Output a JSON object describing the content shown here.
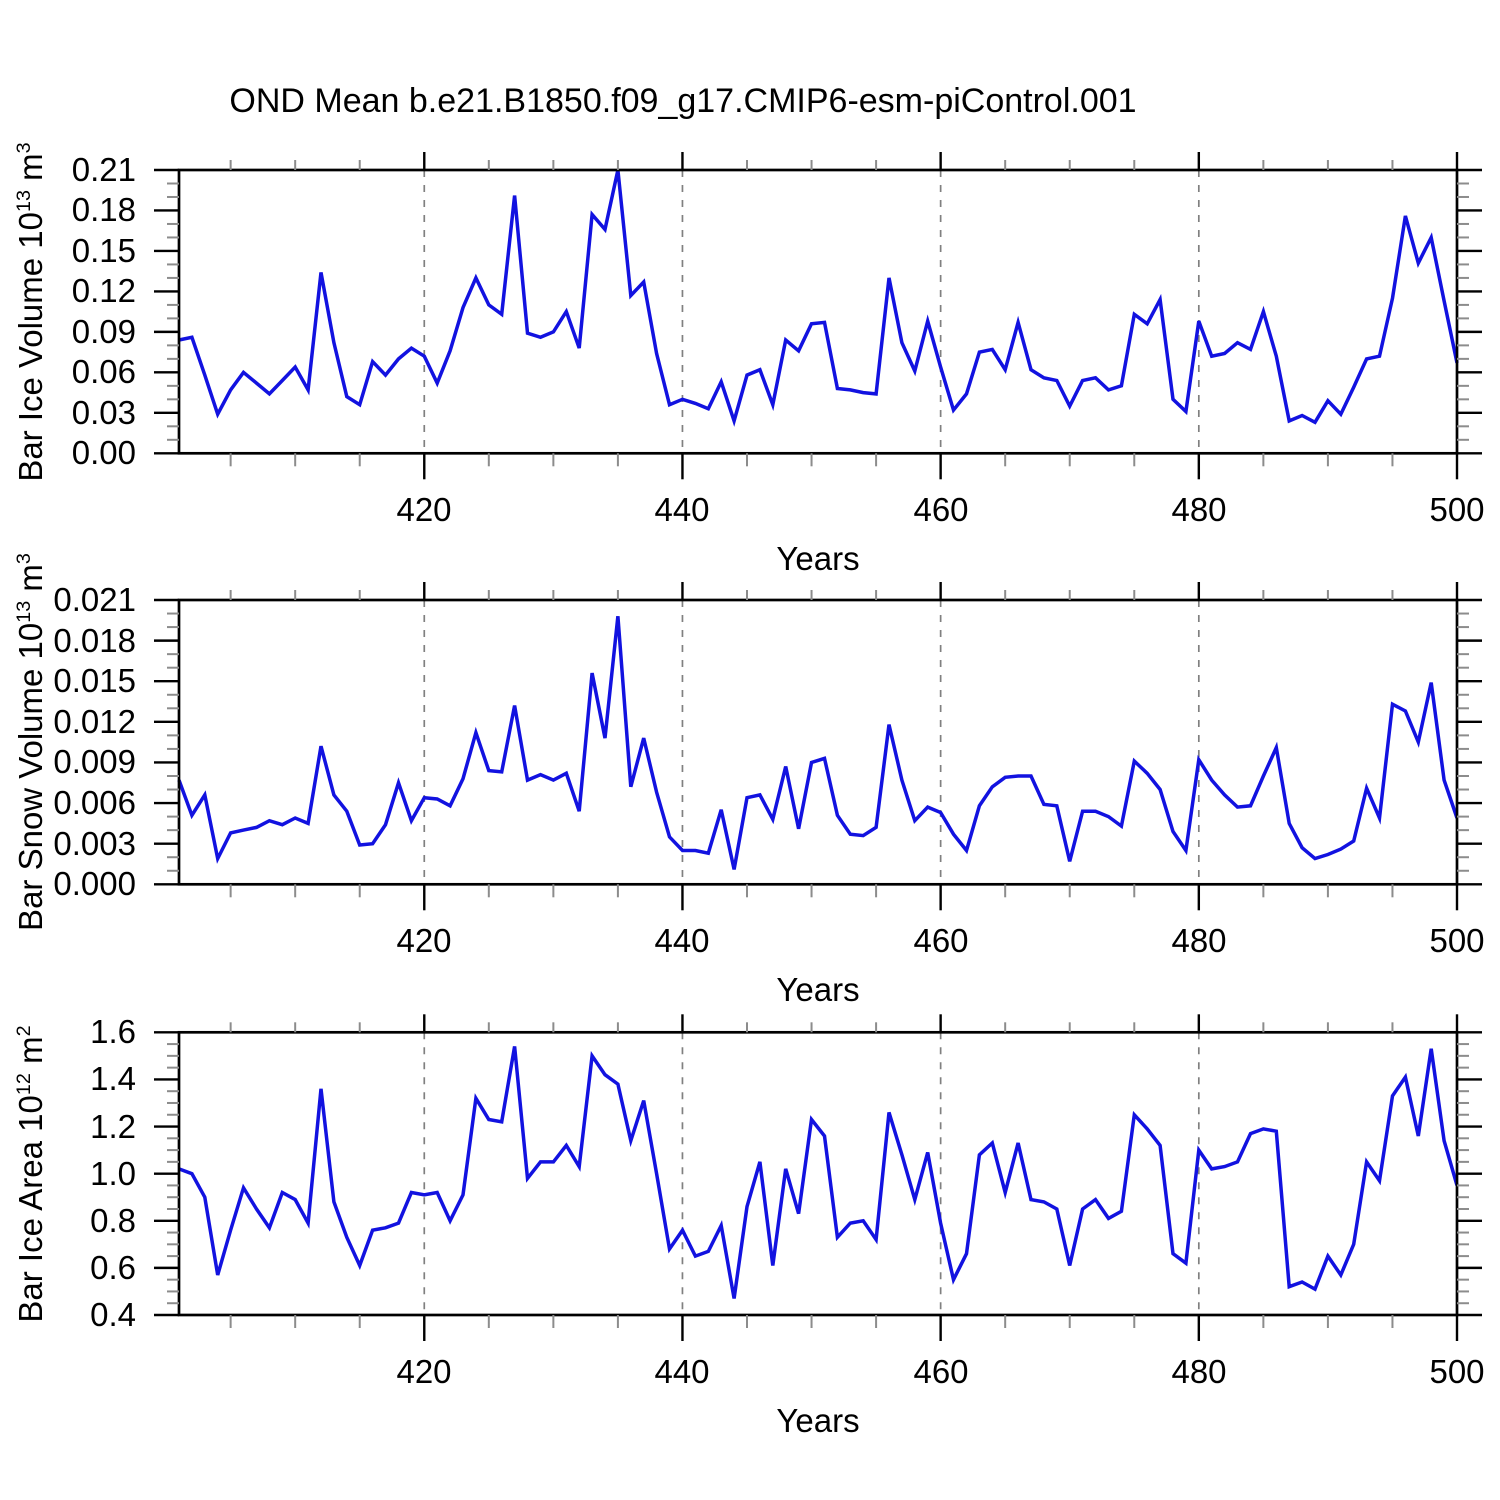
{
  "title": "OND Mean b.e21.B1850.f09_g17.CMIP6-esm-piControl.001",
  "chart_data": {
    "type": "line",
    "legend": "none",
    "grid": "vertical-dashed",
    "line_color": "#1212e0",
    "x_label": "Years",
    "x_ticks": [
      420,
      440,
      460,
      480,
      500
    ],
    "x_minor_step": 5,
    "gridline_years": [
      420,
      440,
      460,
      480
    ],
    "xlim": [
      401,
      500
    ],
    "x": [
      401,
      402,
      403,
      404,
      405,
      406,
      407,
      408,
      409,
      410,
      411,
      412,
      413,
      414,
      415,
      416,
      417,
      418,
      419,
      420,
      421,
      422,
      423,
      424,
      425,
      426,
      427,
      428,
      429,
      430,
      431,
      432,
      433,
      434,
      435,
      436,
      437,
      438,
      439,
      440,
      441,
      442,
      443,
      444,
      445,
      446,
      447,
      448,
      449,
      450,
      451,
      452,
      453,
      454,
      455,
      456,
      457,
      458,
      459,
      460,
      461,
      462,
      463,
      464,
      465,
      466,
      467,
      468,
      469,
      470,
      471,
      472,
      473,
      474,
      475,
      476,
      477,
      478,
      479,
      480,
      481,
      482,
      483,
      484,
      485,
      486,
      487,
      488,
      489,
      490,
      491,
      492,
      493,
      494,
      495,
      496,
      497,
      498,
      499,
      500
    ],
    "panels": [
      {
        "id": "panel-ice-volume",
        "y_label_prefix": "Bar Ice Volume 10",
        "y_label_exp": "13",
        "y_label_mid": " m",
        "y_label_unit_exp": "3",
        "ylim": [
          0.0,
          0.21
        ],
        "y_ticks": [
          "0.00",
          "0.03",
          "0.06",
          "0.09",
          "0.12",
          "0.15",
          "0.18",
          "0.21"
        ],
        "y_minor_step": 0.01,
        "values": [
          0.084,
          0.086,
          0.058,
          0.029,
          0.047,
          0.06,
          0.052,
          0.044,
          0.054,
          0.064,
          0.047,
          0.134,
          0.082,
          0.042,
          0.036,
          0.068,
          0.058,
          0.07,
          0.078,
          0.072,
          0.052,
          0.076,
          0.108,
          0.13,
          0.11,
          0.103,
          0.191,
          0.089,
          0.086,
          0.09,
          0.105,
          0.078,
          0.177,
          0.166,
          0.21,
          0.117,
          0.127,
          0.074,
          0.036,
          0.04,
          0.037,
          0.033,
          0.053,
          0.024,
          0.058,
          0.062,
          0.036,
          0.084,
          0.076,
          0.096,
          0.097,
          0.048,
          0.047,
          0.045,
          0.044,
          0.13,
          0.082,
          0.061,
          0.098,
          0.064,
          0.032,
          0.044,
          0.075,
          0.077,
          0.062,
          0.097,
          0.062,
          0.056,
          0.054,
          0.035,
          0.054,
          0.056,
          0.047,
          0.05,
          0.103,
          0.096,
          0.114,
          0.04,
          0.031,
          0.098,
          0.072,
          0.074,
          0.082,
          0.077,
          0.105,
          0.072,
          0.024,
          0.028,
          0.023,
          0.039,
          0.029,
          0.049,
          0.07,
          0.072,
          0.115,
          0.176,
          0.141,
          0.16,
          0.113,
          0.067
        ]
      },
      {
        "id": "panel-snow-volume",
        "y_label_prefix": "Bar Snow Volume 10",
        "y_label_exp": "13",
        "y_label_mid": " m",
        "y_label_unit_exp": "3",
        "ylim": [
          0.0,
          0.021
        ],
        "y_ticks": [
          "0.000",
          "0.003",
          "0.006",
          "0.009",
          "0.012",
          "0.015",
          "0.018",
          "0.021"
        ],
        "y_minor_step": 0.001,
        "values": [
          0.0077,
          0.0051,
          0.0066,
          0.0019,
          0.0038,
          0.004,
          0.0042,
          0.0047,
          0.0044,
          0.0049,
          0.0045,
          0.0102,
          0.0066,
          0.0054,
          0.0029,
          0.003,
          0.0044,
          0.0075,
          0.0047,
          0.0064,
          0.0063,
          0.0058,
          0.0078,
          0.0112,
          0.0084,
          0.0083,
          0.0132,
          0.0077,
          0.0081,
          0.0077,
          0.0082,
          0.0054,
          0.0156,
          0.0108,
          0.0198,
          0.0072,
          0.0108,
          0.0068,
          0.0035,
          0.0025,
          0.0025,
          0.0023,
          0.0055,
          0.0011,
          0.0064,
          0.0066,
          0.0048,
          0.0087,
          0.0041,
          0.009,
          0.0093,
          0.0051,
          0.0037,
          0.0036,
          0.0042,
          0.0118,
          0.0077,
          0.0047,
          0.0057,
          0.0053,
          0.0037,
          0.0025,
          0.0058,
          0.0072,
          0.0079,
          0.008,
          0.008,
          0.0059,
          0.0058,
          0.0017,
          0.0054,
          0.0054,
          0.005,
          0.0043,
          0.0091,
          0.0082,
          0.007,
          0.0039,
          0.0025,
          0.0092,
          0.0077,
          0.0066,
          0.0057,
          0.0058,
          0.008,
          0.0101,
          0.0045,
          0.0027,
          0.0019,
          0.0022,
          0.0026,
          0.0032,
          0.0071,
          0.0049,
          0.0133,
          0.0128,
          0.0105,
          0.0149,
          0.0077,
          0.0049
        ]
      },
      {
        "id": "panel-ice-area",
        "y_label_prefix": "Bar Ice Area 10",
        "y_label_exp": "12",
        "y_label_mid": " m",
        "y_label_unit_exp": "2",
        "ylim": [
          0.4,
          1.6
        ],
        "y_ticks": [
          "0.4",
          "0.6",
          "0.8",
          "1.0",
          "1.2",
          "1.4",
          "1.6"
        ],
        "y_minor_step": 0.05,
        "values": [
          1.02,
          1.0,
          0.9,
          0.57,
          0.76,
          0.94,
          0.85,
          0.77,
          0.92,
          0.89,
          0.79,
          1.36,
          0.88,
          0.73,
          0.61,
          0.76,
          0.77,
          0.79,
          0.92,
          0.91,
          0.92,
          0.8,
          0.91,
          1.32,
          1.23,
          1.22,
          1.54,
          0.98,
          1.05,
          1.05,
          1.12,
          1.03,
          1.5,
          1.42,
          1.38,
          1.14,
          1.31,
          1.0,
          0.68,
          0.76,
          0.65,
          0.67,
          0.78,
          0.47,
          0.86,
          1.05,
          0.61,
          1.02,
          0.83,
          1.23,
          1.16,
          0.73,
          0.79,
          0.8,
          0.72,
          1.26,
          1.08,
          0.89,
          1.09,
          0.79,
          0.55,
          0.66,
          1.08,
          1.13,
          0.92,
          1.13,
          0.89,
          0.88,
          0.85,
          0.61,
          0.85,
          0.89,
          0.81,
          0.84,
          1.25,
          1.19,
          1.12,
          0.66,
          0.62,
          1.1,
          1.02,
          1.03,
          1.05,
          1.17,
          1.19,
          1.18,
          0.52,
          0.54,
          0.51,
          0.65,
          0.57,
          0.7,
          1.05,
          0.97,
          1.33,
          1.41,
          1.16,
          1.53,
          1.14,
          0.95
        ]
      }
    ]
  }
}
